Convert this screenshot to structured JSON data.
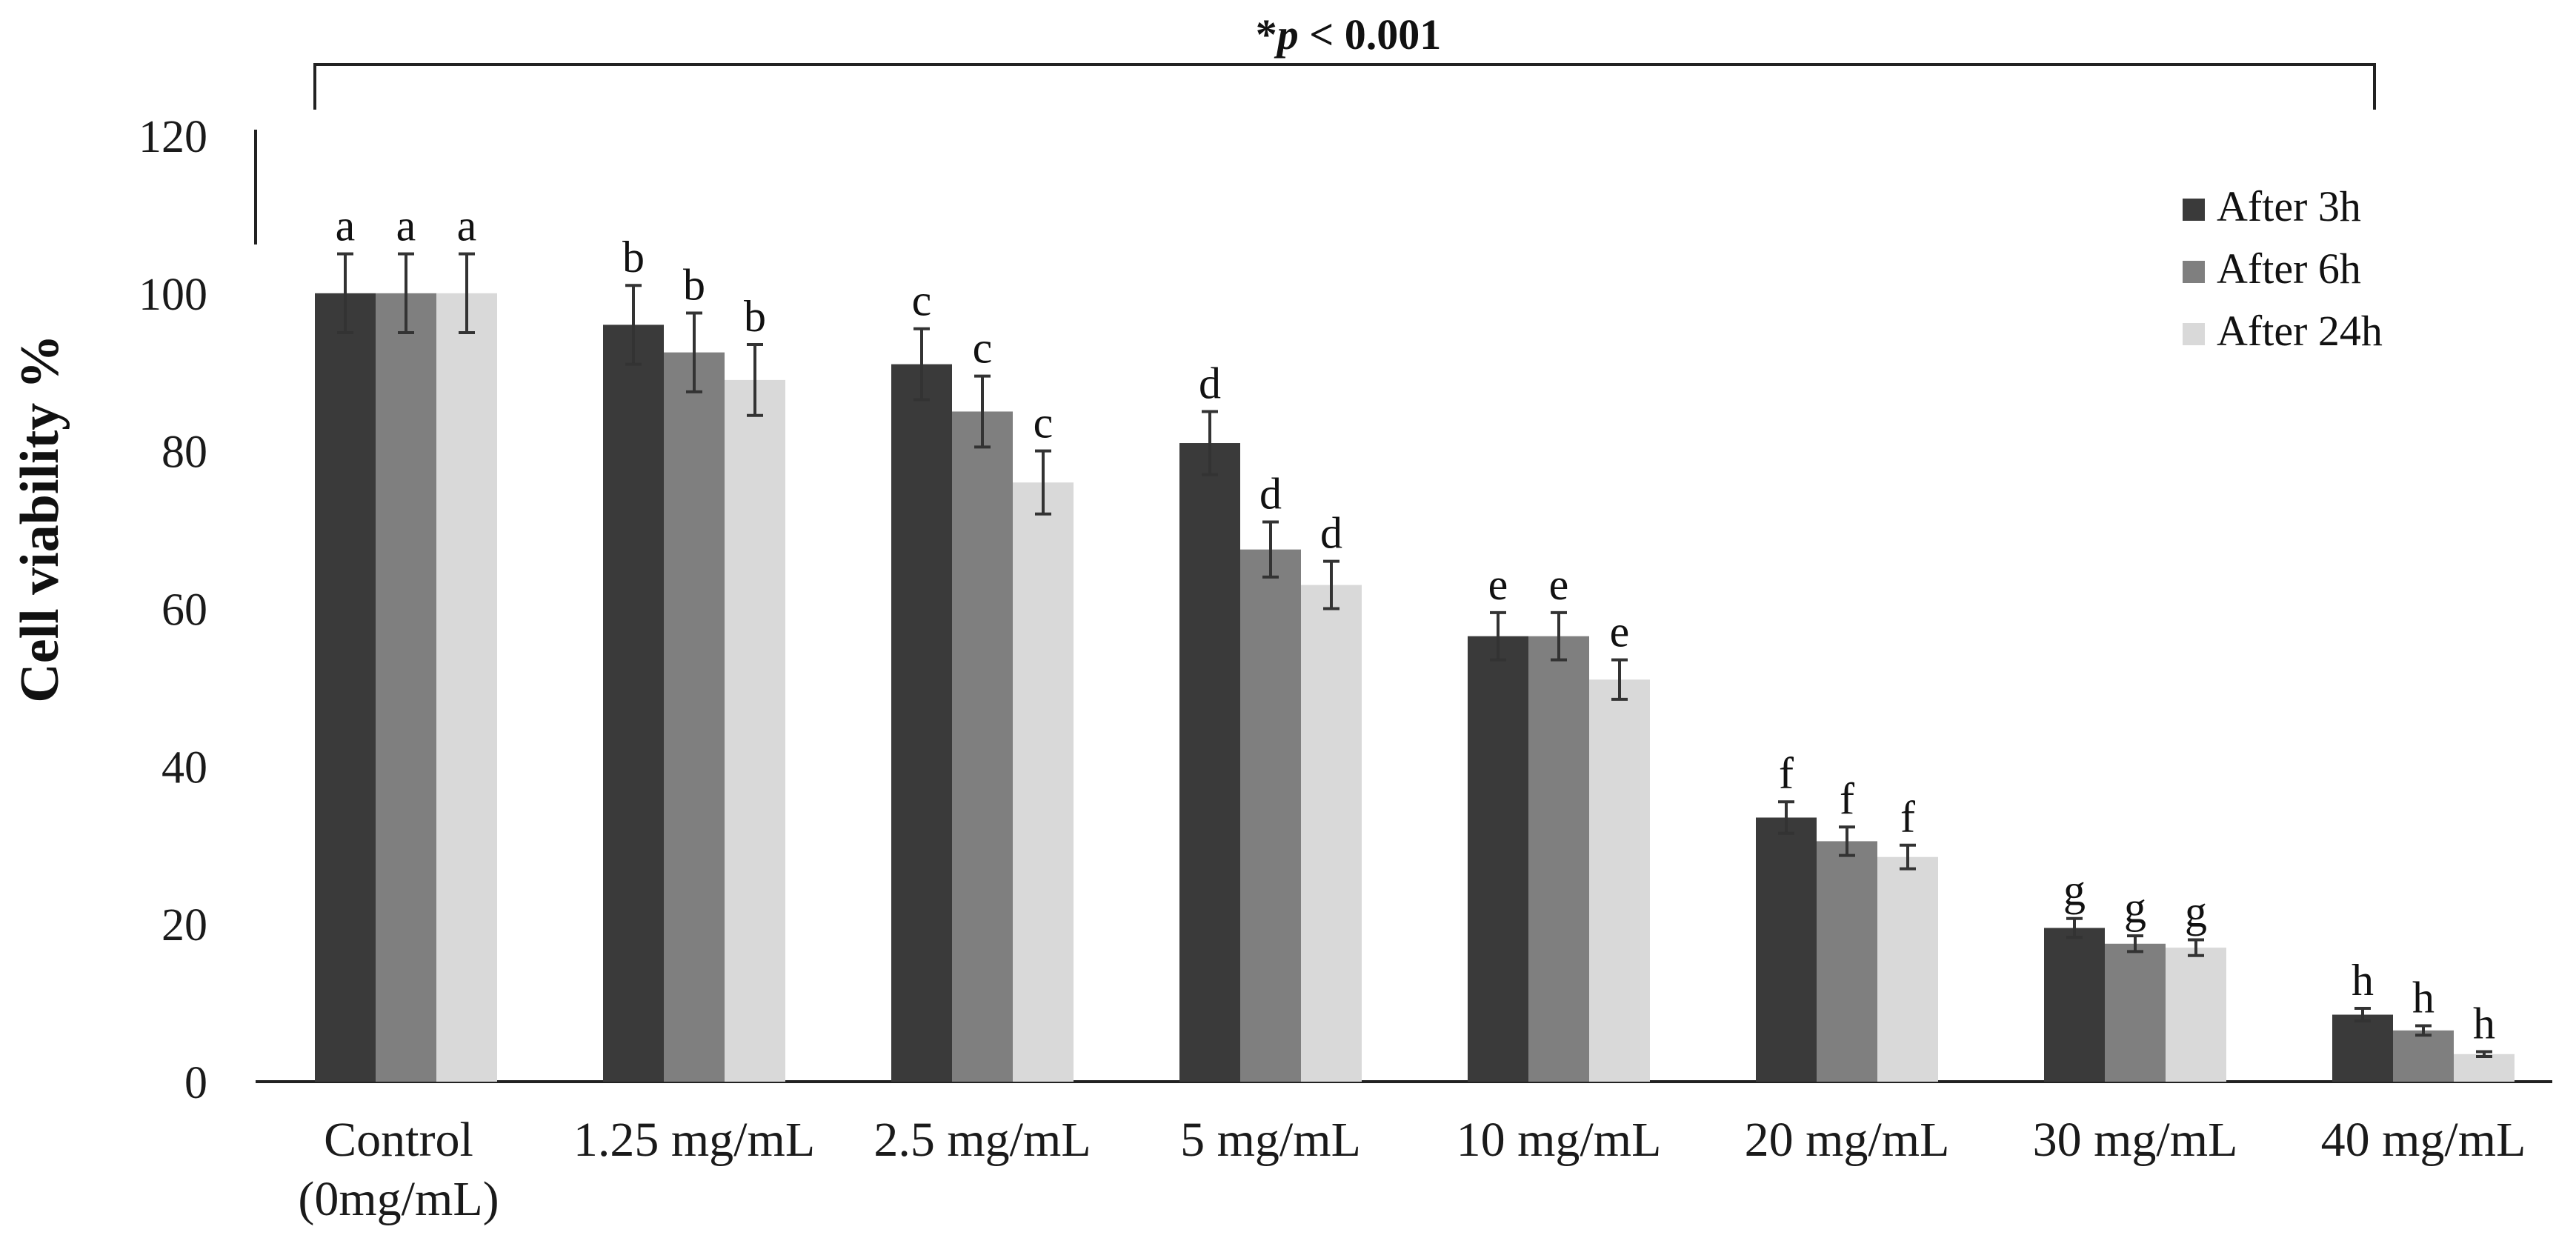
{
  "chart_data": {
    "type": "bar",
    "title": "",
    "xlabel": "",
    "ylabel": "Cell viability %",
    "ylim": [
      0,
      120
    ],
    "yticks": [
      "0",
      "20",
      "40",
      "60",
      "80",
      "100",
      "120"
    ],
    "categories": [
      [
        "Control",
        "(0mg/mL)"
      ],
      [
        "1.25 mg/mL"
      ],
      [
        "2.5 mg/mL"
      ],
      [
        "5 mg/mL"
      ],
      [
        "10 mg/mL"
      ],
      [
        "20 mg/mL"
      ],
      [
        "30 mg/mL"
      ],
      [
        "40 mg/mL"
      ]
    ],
    "series": [
      {
        "name": "After 3h",
        "color": "#3a3a3a",
        "values": [
          100,
          96,
          91,
          81,
          56.5,
          33.5,
          19.5,
          8.5
        ],
        "errors": [
          5,
          5,
          4.5,
          4,
          3,
          2,
          1.2,
          0.8
        ]
      },
      {
        "name": "After 6h",
        "color": "#7f7f7f",
        "values": [
          100,
          92.5,
          85,
          67.5,
          56.5,
          30.5,
          17.5,
          6.5
        ],
        "errors": [
          5,
          5,
          4.5,
          3.5,
          3,
          1.8,
          1,
          0.6
        ]
      },
      {
        "name": "After 24h",
        "color": "#d9d9d9",
        "values": [
          100,
          89,
          76,
          63,
          51,
          28.5,
          17,
          3.5
        ],
        "errors": [
          5,
          4.5,
          4,
          3,
          2.5,
          1.5,
          1,
          0.3
        ]
      }
    ],
    "significance_letters": [
      [
        "a",
        "a",
        "a"
      ],
      [
        "b",
        "b",
        "b"
      ],
      [
        "c",
        "c",
        "c"
      ],
      [
        "d",
        "d",
        "d"
      ],
      [
        "e",
        "e",
        "e"
      ],
      [
        "f",
        "f",
        "f"
      ],
      [
        "g",
        "g",
        "g"
      ],
      [
        "h",
        "h",
        "h"
      ]
    ],
    "annotation": {
      "star": "*",
      "p": "p",
      "rest": " < 0.001"
    },
    "legend_position": "top-right"
  }
}
